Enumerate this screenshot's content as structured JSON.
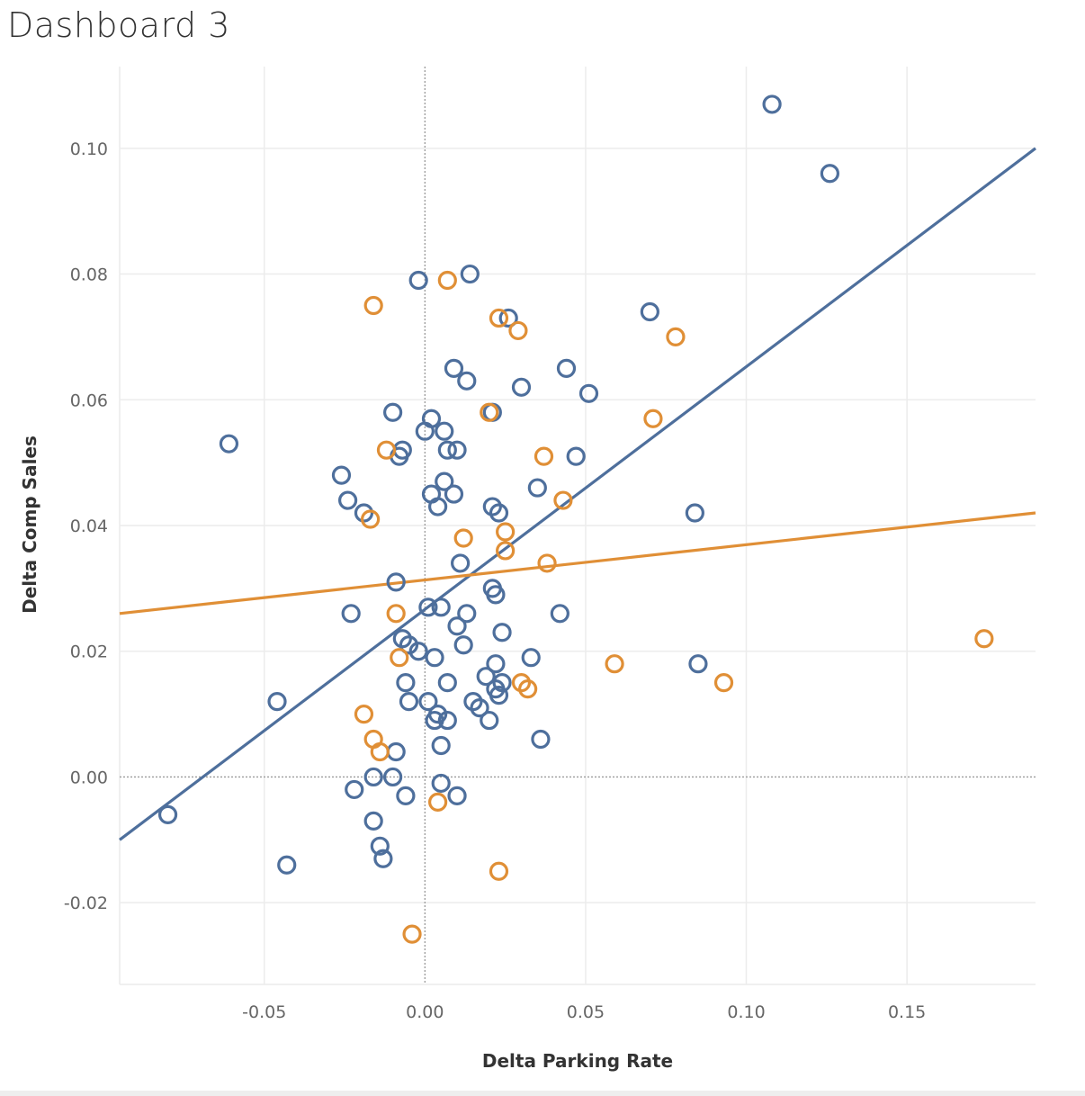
{
  "title": "Dashboard 3",
  "chart_data": {
    "type": "scatter",
    "xlabel": "Delta Parking Rate",
    "ylabel": "Delta Comp Sales",
    "xlim": [
      -0.095,
      0.19
    ],
    "ylim": [
      -0.033,
      0.113
    ],
    "x_ticks": [
      -0.05,
      0.0,
      0.05,
      0.1,
      0.15
    ],
    "x_tick_labels": [
      "-0.05",
      "0.00",
      "0.05",
      "0.10",
      "0.15"
    ],
    "y_ticks": [
      -0.02,
      0.0,
      0.02,
      0.04,
      0.06,
      0.08,
      0.1
    ],
    "y_tick_labels": [
      "-0.02",
      "0.00",
      "0.02",
      "0.04",
      "0.06",
      "0.08",
      "0.10"
    ],
    "grid": true,
    "zero_lines": true,
    "series": [
      {
        "color": "#4e6f9c",
        "points": [
          [
            0.108,
            0.107
          ],
          [
            0.126,
            0.096
          ],
          [
            -0.061,
            0.053
          ],
          [
            -0.08,
            -0.006
          ],
          [
            -0.046,
            0.012
          ],
          [
            -0.043,
            -0.014
          ],
          [
            -0.026,
            0.048
          ],
          [
            -0.024,
            0.044
          ],
          [
            -0.023,
            0.026
          ],
          [
            -0.022,
            -0.002
          ],
          [
            -0.019,
            0.042
          ],
          [
            -0.016,
            0.0
          ],
          [
            -0.016,
            -0.007
          ],
          [
            -0.014,
            -0.011
          ],
          [
            -0.013,
            -0.013
          ],
          [
            -0.01,
            0.058
          ],
          [
            -0.01,
            0.0
          ],
          [
            -0.009,
            0.031
          ],
          [
            -0.009,
            0.004
          ],
          [
            -0.008,
            0.051
          ],
          [
            -0.007,
            0.052
          ],
          [
            -0.007,
            0.022
          ],
          [
            -0.006,
            -0.003
          ],
          [
            -0.006,
            0.015
          ],
          [
            -0.005,
            0.012
          ],
          [
            -0.005,
            0.021
          ],
          [
            -0.002,
            0.079
          ],
          [
            -0.002,
            0.02
          ],
          [
            0.0,
            0.055
          ],
          [
            0.001,
            0.012
          ],
          [
            0.001,
            0.027
          ],
          [
            0.002,
            0.057
          ],
          [
            0.002,
            0.045
          ],
          [
            0.003,
            0.019
          ],
          [
            0.003,
            0.009
          ],
          [
            0.004,
            0.043
          ],
          [
            0.004,
            0.01
          ],
          [
            0.005,
            0.027
          ],
          [
            0.005,
            -0.001
          ],
          [
            0.005,
            0.005
          ],
          [
            0.006,
            0.055
          ],
          [
            0.006,
            0.047
          ],
          [
            0.007,
            0.015
          ],
          [
            0.007,
            0.052
          ],
          [
            0.007,
            0.009
          ],
          [
            0.009,
            0.065
          ],
          [
            0.009,
            0.045
          ],
          [
            0.01,
            0.052
          ],
          [
            0.01,
            -0.003
          ],
          [
            0.01,
            0.024
          ],
          [
            0.011,
            0.034
          ],
          [
            0.012,
            0.021
          ],
          [
            0.013,
            0.063
          ],
          [
            0.013,
            0.026
          ],
          [
            0.014,
            0.08
          ],
          [
            0.015,
            0.012
          ],
          [
            0.017,
            0.011
          ],
          [
            0.019,
            0.016
          ],
          [
            0.02,
            0.009
          ],
          [
            0.021,
            0.043
          ],
          [
            0.021,
            0.03
          ],
          [
            0.021,
            0.058
          ],
          [
            0.022,
            0.029
          ],
          [
            0.022,
            0.018
          ],
          [
            0.022,
            0.014
          ],
          [
            0.023,
            0.013
          ],
          [
            0.023,
            0.042
          ],
          [
            0.024,
            0.015
          ],
          [
            0.024,
            0.023
          ],
          [
            0.026,
            0.073
          ],
          [
            0.03,
            0.062
          ],
          [
            0.033,
            0.019
          ],
          [
            0.035,
            0.046
          ],
          [
            0.036,
            0.006
          ],
          [
            0.042,
            0.026
          ],
          [
            0.044,
            0.065
          ],
          [
            0.047,
            0.051
          ],
          [
            0.051,
            0.061
          ],
          [
            0.07,
            0.074
          ],
          [
            0.084,
            0.042
          ],
          [
            0.085,
            0.018
          ]
        ],
        "trend_line": {
          "x": [
            -0.095,
            0.19
          ],
          "y": [
            -0.01,
            0.1
          ]
        }
      },
      {
        "color": "#e08f36",
        "points": [
          [
            -0.016,
            0.075
          ],
          [
            0.007,
            0.079
          ],
          [
            0.023,
            0.073
          ],
          [
            0.029,
            0.071
          ],
          [
            0.078,
            0.07
          ],
          [
            0.071,
            0.057
          ],
          [
            0.02,
            0.058
          ],
          [
            -0.012,
            0.052
          ],
          [
            0.037,
            0.051
          ],
          [
            0.043,
            0.044
          ],
          [
            -0.017,
            0.041
          ],
          [
            0.012,
            0.038
          ],
          [
            0.025,
            0.039
          ],
          [
            0.025,
            0.036
          ],
          [
            0.038,
            0.034
          ],
          [
            -0.009,
            0.026
          ],
          [
            -0.008,
            0.019
          ],
          [
            0.059,
            0.018
          ],
          [
            0.174,
            0.022
          ],
          [
            0.093,
            0.015
          ],
          [
            0.03,
            0.015
          ],
          [
            0.032,
            0.014
          ],
          [
            -0.019,
            0.01
          ],
          [
            -0.016,
            0.006
          ],
          [
            -0.014,
            0.004
          ],
          [
            0.004,
            -0.004
          ],
          [
            0.023,
            -0.015
          ],
          [
            -0.004,
            -0.025
          ]
        ],
        "trend_line": {
          "x": [
            -0.095,
            0.19
          ],
          "y": [
            0.026,
            0.042
          ]
        }
      }
    ]
  }
}
